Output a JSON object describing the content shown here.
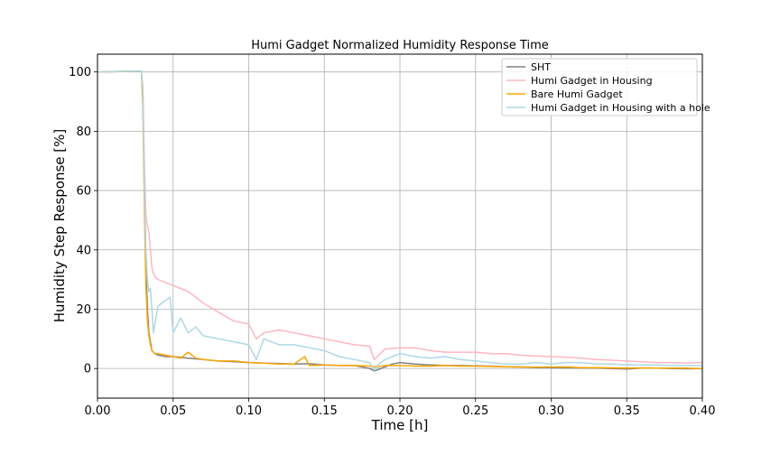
{
  "chart_data": {
    "type": "line",
    "title": "Humi Gadget Normalized Humidity Response Time",
    "xlabel": "Time [h]",
    "ylabel": "Humidity Step Response [%]",
    "xlim": [
      0.0,
      0.4
    ],
    "ylim": [
      -10,
      106
    ],
    "xticks": [
      0.0,
      0.05,
      0.1,
      0.15,
      0.2,
      0.25,
      0.3,
      0.35,
      0.4
    ],
    "xtick_labels": [
      "0.00",
      "0.05",
      "0.10",
      "0.15",
      "0.20",
      "0.25",
      "0.30",
      "0.35",
      "0.40"
    ],
    "yticks": [
      0,
      20,
      40,
      60,
      80,
      100
    ],
    "ytick_labels": [
      "0",
      "20",
      "40",
      "60",
      "80",
      "100"
    ],
    "grid": true,
    "legend_position": "top-right",
    "series": [
      {
        "name": "SHT",
        "color": "#808080",
        "x": [
          0,
          0.028,
          0.029,
          0.03,
          0.031,
          0.032,
          0.033,
          0.034,
          0.035,
          0.036,
          0.038,
          0.04,
          0.045,
          0.05,
          0.06,
          0.07,
          0.08,
          0.09,
          0.1,
          0.11,
          0.12,
          0.13,
          0.14,
          0.15,
          0.16,
          0.17,
          0.175,
          0.18,
          0.183,
          0.185,
          0.19,
          0.195,
          0.2,
          0.21,
          0.22,
          0.23,
          0.24,
          0.25,
          0.26,
          0.27,
          0.28,
          0.29,
          0.3,
          0.31,
          0.32,
          0.33,
          0.34,
          0.35,
          0.36,
          0.37,
          0.38,
          0.39,
          0.4
        ],
        "values": [
          100,
          100.3,
          100.3,
          92,
          60,
          35,
          20,
          12,
          9,
          6,
          5,
          4.5,
          4,
          4,
          3.5,
          3,
          2.5,
          2.3,
          2,
          1.8,
          1.7,
          1.5,
          1.6,
          1.2,
          1.0,
          1.0,
          0.5,
          0,
          -0.8,
          -0.5,
          0.5,
          1.5,
          2,
          1.5,
          1.2,
          1.0,
          1.0,
          0.9,
          0.8,
          0.6,
          0.5,
          0.3,
          0.3,
          0.2,
          0.1,
          0.1,
          0,
          -0.2,
          0.1,
          0.1,
          0,
          -0.1,
          0
        ]
      },
      {
        "name": "Humi Gadget in Housing",
        "color": "#ffb6c1",
        "x": [
          0,
          0.028,
          0.029,
          0.03,
          0.031,
          0.032,
          0.033,
          0.034,
          0.035,
          0.036,
          0.037,
          0.038,
          0.04,
          0.045,
          0.05,
          0.055,
          0.06,
          0.065,
          0.07,
          0.08,
          0.09,
          0.1,
          0.105,
          0.11,
          0.12,
          0.13,
          0.14,
          0.15,
          0.16,
          0.17,
          0.18,
          0.183,
          0.185,
          0.19,
          0.2,
          0.21,
          0.22,
          0.23,
          0.24,
          0.25,
          0.26,
          0.27,
          0.28,
          0.29,
          0.3,
          0.31,
          0.32,
          0.33,
          0.34,
          0.35,
          0.36,
          0.37,
          0.38,
          0.39,
          0.4
        ],
        "values": [
          100,
          100.3,
          100.3,
          95,
          70,
          52,
          48,
          46,
          40,
          34,
          32,
          31,
          30,
          29,
          28,
          27,
          26,
          24,
          22,
          19,
          16,
          15,
          10,
          12,
          13,
          12,
          11,
          10,
          9,
          8,
          7.5,
          3,
          4,
          6.5,
          7,
          7,
          6,
          5.5,
          5.5,
          5.5,
          5,
          5,
          4.5,
          4.2,
          4,
          3.8,
          3.5,
          3,
          2.8,
          2.5,
          2.2,
          2,
          2,
          1.8,
          2
        ]
      },
      {
        "name": "Bare Humi Gadget",
        "color": "#ffa500",
        "x": [
          0,
          0.028,
          0.029,
          0.03,
          0.031,
          0.032,
          0.033,
          0.034,
          0.035,
          0.036,
          0.038,
          0.04,
          0.045,
          0.05,
          0.055,
          0.06,
          0.065,
          0.07,
          0.08,
          0.09,
          0.1,
          0.11,
          0.12,
          0.13,
          0.137,
          0.14,
          0.15,
          0.16,
          0.17,
          0.18,
          0.185,
          0.19,
          0.195,
          0.2,
          0.21,
          0.22,
          0.23,
          0.24,
          0.25,
          0.26,
          0.27,
          0.28,
          0.29,
          0.3,
          0.31,
          0.32,
          0.33,
          0.34,
          0.35,
          0.36,
          0.37,
          0.38,
          0.39,
          0.4
        ],
        "values": [
          100,
          100.3,
          100.3,
          88,
          55,
          28,
          16,
          11,
          8,
          6,
          5,
          5,
          4.5,
          4,
          3.5,
          5.5,
          3.5,
          3,
          2.5,
          2.5,
          2,
          1.8,
          1.5,
          1.5,
          4,
          1,
          1.2,
          1.0,
          1.0,
          0.8,
          0.5,
          1,
          1,
          1,
          0.8,
          0.8,
          1.0,
          0.8,
          0.8,
          0.7,
          0.6,
          0.5,
          0.4,
          0.5,
          0.5,
          0.3,
          0.3,
          0.2,
          0.1,
          0.2,
          0.1,
          0.1,
          0.1,
          0
        ]
      },
      {
        "name": "Humi Gadget in Housing with a hole",
        "color": "#add8e6",
        "x": [
          0,
          0.028,
          0.029,
          0.03,
          0.031,
          0.032,
          0.033,
          0.034,
          0.035,
          0.036,
          0.037,
          0.038,
          0.04,
          0.045,
          0.048,
          0.05,
          0.055,
          0.06,
          0.065,
          0.07,
          0.08,
          0.09,
          0.1,
          0.105,
          0.11,
          0.12,
          0.13,
          0.14,
          0.15,
          0.16,
          0.17,
          0.18,
          0.183,
          0.185,
          0.19,
          0.2,
          0.21,
          0.22,
          0.23,
          0.24,
          0.25,
          0.26,
          0.27,
          0.28,
          0.29,
          0.3,
          0.31,
          0.32,
          0.33,
          0.34,
          0.35,
          0.36,
          0.37,
          0.38,
          0.39,
          0.4
        ],
        "values": [
          100,
          100.3,
          100.3,
          93,
          62,
          40,
          30,
          26,
          27,
          20,
          12,
          15,
          21,
          23,
          24,
          12,
          17,
          12,
          14,
          11,
          10,
          9,
          8,
          3,
          10,
          8,
          8,
          7,
          6,
          4,
          3,
          2,
          -0.5,
          1,
          3,
          5,
          4,
          3.5,
          4,
          3,
          2.5,
          2,
          1.5,
          1.5,
          2,
          1.5,
          2,
          2,
          1.5,
          1.5,
          1.2,
          1.2,
          1.2,
          1,
          1,
          1
        ]
      }
    ]
  }
}
